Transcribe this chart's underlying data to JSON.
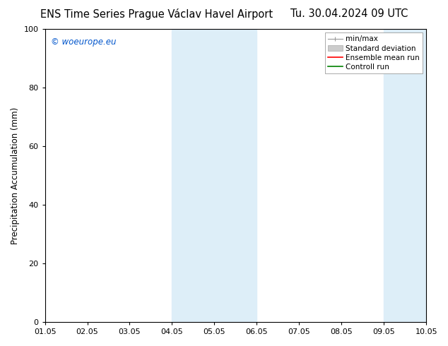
{
  "title_left": "ENS Time Series Prague Václav Havel Airport",
  "title_right": "Tu. 30.04.2024 09 UTC",
  "ylabel": "Precipitation Accumulation (mm)",
  "watermark": "© woeurope.eu",
  "watermark_color": "#0055cc",
  "xlim": [
    0,
    9
  ],
  "ylim": [
    0,
    100
  ],
  "yticks": [
    0,
    20,
    40,
    60,
    80,
    100
  ],
  "xtick_labels": [
    "01.05",
    "02.05",
    "03.05",
    "04.05",
    "05.05",
    "06.05",
    "07.05",
    "08.05",
    "09.05",
    "10.05"
  ],
  "xtick_positions": [
    0,
    1,
    2,
    3,
    4,
    5,
    6,
    7,
    8,
    9
  ],
  "shaded_regions": [
    {
      "xmin": 3.0,
      "xmax": 5.0,
      "color": "#ddeef8"
    },
    {
      "xmin": 8.0,
      "xmax": 9.0,
      "color": "#ddeef8"
    }
  ],
  "legend_items": [
    {
      "label": "min/max",
      "color": "#aaaaaa",
      "lw": 1.0,
      "style": "minmax"
    },
    {
      "label": "Standard deviation",
      "color": "#cccccc",
      "lw": 5,
      "style": "fill"
    },
    {
      "label": "Ensemble mean run",
      "color": "red",
      "lw": 1.2,
      "style": "line"
    },
    {
      "label": "Controll run",
      "color": "green",
      "lw": 1.2,
      "style": "line"
    }
  ],
  "bg_color": "#ffffff",
  "axes_bg_color": "#ffffff",
  "title_fontsize": 10.5,
  "label_fontsize": 8.5,
  "tick_fontsize": 8,
  "legend_fontsize": 7.5
}
